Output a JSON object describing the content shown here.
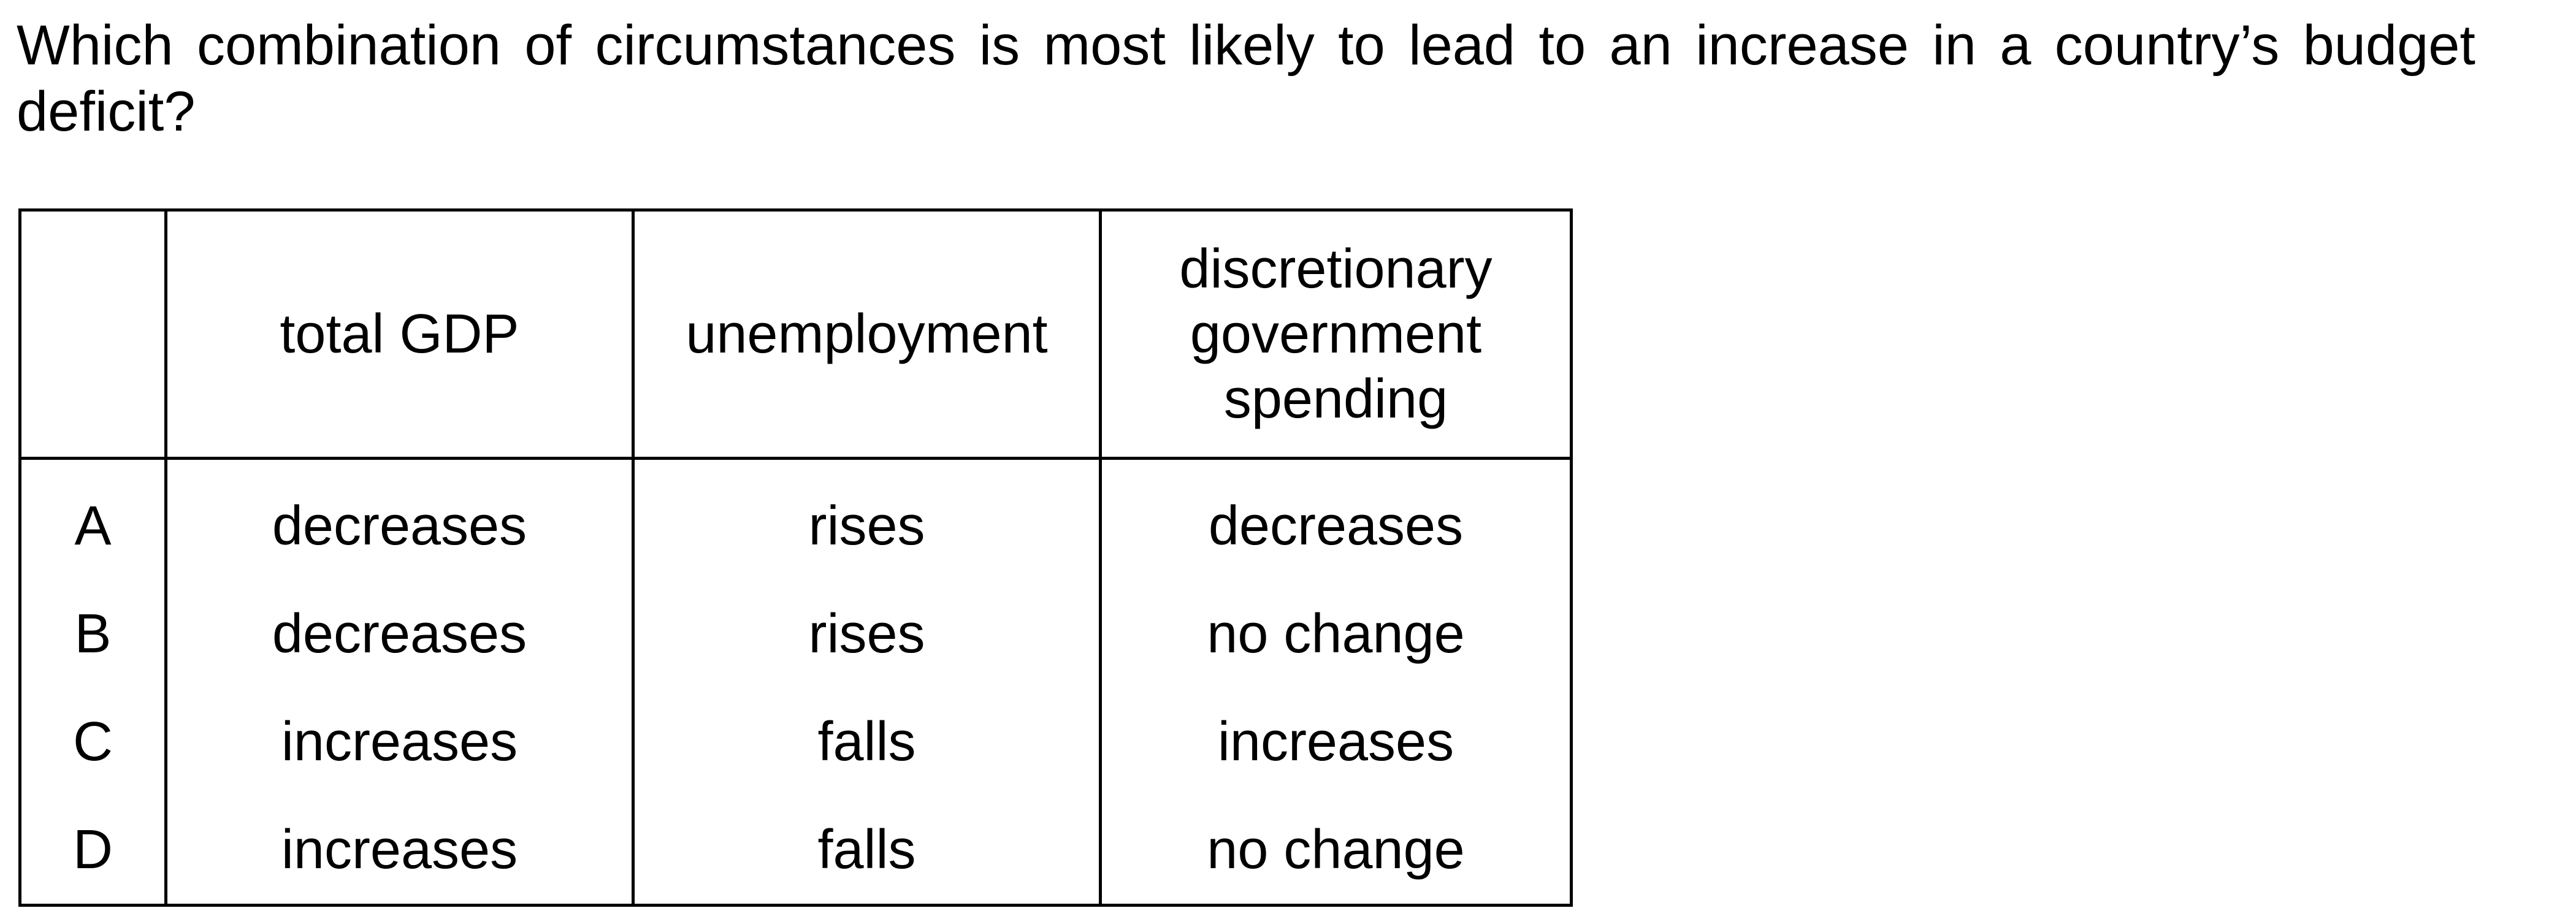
{
  "question": "Which combination of circumstances is most likely to lead to an increase in a country’s budget deficit?",
  "table": {
    "headers": [
      "",
      "total GDP",
      "unemployment",
      "discretionary government spending"
    ],
    "rows": [
      {
        "option": "A",
        "gdp": "decreases",
        "unemployment": "rises",
        "spending": "decreases"
      },
      {
        "option": "B",
        "gdp": "decreases",
        "unemployment": "rises",
        "spending": "no change"
      },
      {
        "option": "C",
        "gdp": "increases",
        "unemployment": "falls",
        "spending": "increases"
      },
      {
        "option": "D",
        "gdp": "increases",
        "unemployment": "falls",
        "spending": "no change"
      }
    ]
  }
}
